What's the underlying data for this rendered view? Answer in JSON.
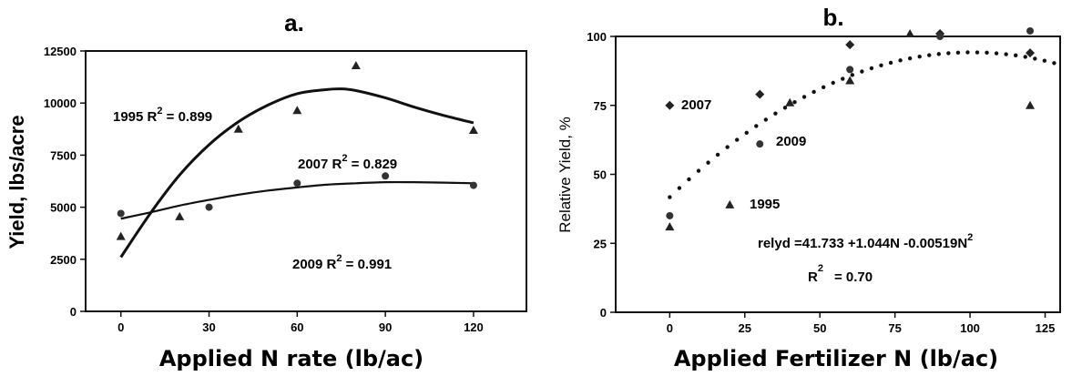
{
  "chart_data": [
    {
      "type": "scatter",
      "title": "a.",
      "xlabel": "Applied N rate (lb/ac)",
      "ylabel": "Yield, lbs/acre",
      "xlim": [
        -12,
        138
      ],
      "ylim": [
        0,
        12500
      ],
      "xticks": [
        0,
        30,
        60,
        90,
        120
      ],
      "yticks": [
        0,
        2500,
        5000,
        7500,
        10000,
        12500
      ],
      "grid": false,
      "series": [
        {
          "name": "1995",
          "marker": "triangle",
          "x": [
            0,
            20,
            40,
            60,
            80,
            120
          ],
          "y": [
            3600,
            4550,
            8750,
            9650,
            11800,
            8700
          ],
          "fit": {
            "x": [
              0,
              10,
              20,
              30,
              40,
              50,
              60,
              70,
              75,
              80,
              90,
              100,
              110,
              120
            ],
            "y": [
              2600,
              4700,
              6550,
              8000,
              9100,
              9900,
              10450,
              10650,
              10680,
              10600,
              10250,
              9800,
              9400,
              9050
            ]
          }
        },
        {
          "name": "2007",
          "marker": "circle",
          "x": [
            0,
            30,
            60,
            90,
            120
          ],
          "y": [
            4700,
            5000,
            6150,
            6500,
            6050
          ],
          "fit": {
            "x": [
              0,
              10,
              20,
              30,
              40,
              50,
              60,
              70,
              80,
              90,
              100,
              110,
              120
            ],
            "y": [
              4450,
              4750,
              5080,
              5350,
              5600,
              5800,
              5950,
              6080,
              6150,
              6200,
              6200,
              6180,
              6150
            ]
          }
        },
        {
          "name": "2009",
          "marker": "circle",
          "x": [],
          "y": []
        }
      ],
      "annotations": [
        {
          "text": "1995 R",
          "sup": "2",
          "tail": " = 0.899",
          "x": -3,
          "y": 10150
        },
        {
          "text": "2007 R",
          "sup": "2",
          "tail": " = 0.829",
          "x": 68,
          "y": 7000
        },
        {
          "text": "2009 R",
          "sup": "2",
          "tail": " = 0.991",
          "x": 68,
          "y": 2400
        }
      ]
    },
    {
      "type": "scatter",
      "title": "b.",
      "xlabel": "Applied Fertilizer N (lb/ac)",
      "ylabel": "Relative Yield, %",
      "xlim": [
        -18,
        130
      ],
      "ylim": [
        0,
        100
      ],
      "xticks": [
        0,
        25,
        50,
        75,
        100,
        125
      ],
      "yticks": [
        0,
        25,
        50,
        75,
        100
      ],
      "grid": false,
      "series": [
        {
          "name": "2007",
          "marker": "diamond",
          "x": [
            0,
            30,
            60,
            90,
            120
          ],
          "y": [
            75,
            79,
            97,
            101,
            94
          ]
        },
        {
          "name": "2009",
          "marker": "circle",
          "x": [
            0,
            30,
            60,
            90,
            120
          ],
          "y": [
            35,
            61,
            88,
            100,
            102
          ]
        },
        {
          "name": "1995",
          "marker": "triangle",
          "x": [
            0,
            20,
            40,
            60,
            80,
            120
          ],
          "y": [
            31,
            39,
            76,
            84,
            101,
            75
          ]
        }
      ],
      "fit": {
        "equation": "relyd =41.733 +1.044N  -0.00519N",
        "eq_sup": "2",
        "r2_label": "R",
        "r2_sup": "2",
        "r2_value": "= 0.70",
        "coef": [
          41.733,
          1.044,
          -0.00519
        ],
        "xrange": [
          0,
          130
        ]
      },
      "annotations": [
        {
          "text": "2007",
          "x": 25,
          "y": 80
        },
        {
          "text": "2009",
          "x": 58,
          "y": 63
        },
        {
          "text": "1995",
          "x": 54,
          "y": 39
        }
      ]
    }
  ]
}
